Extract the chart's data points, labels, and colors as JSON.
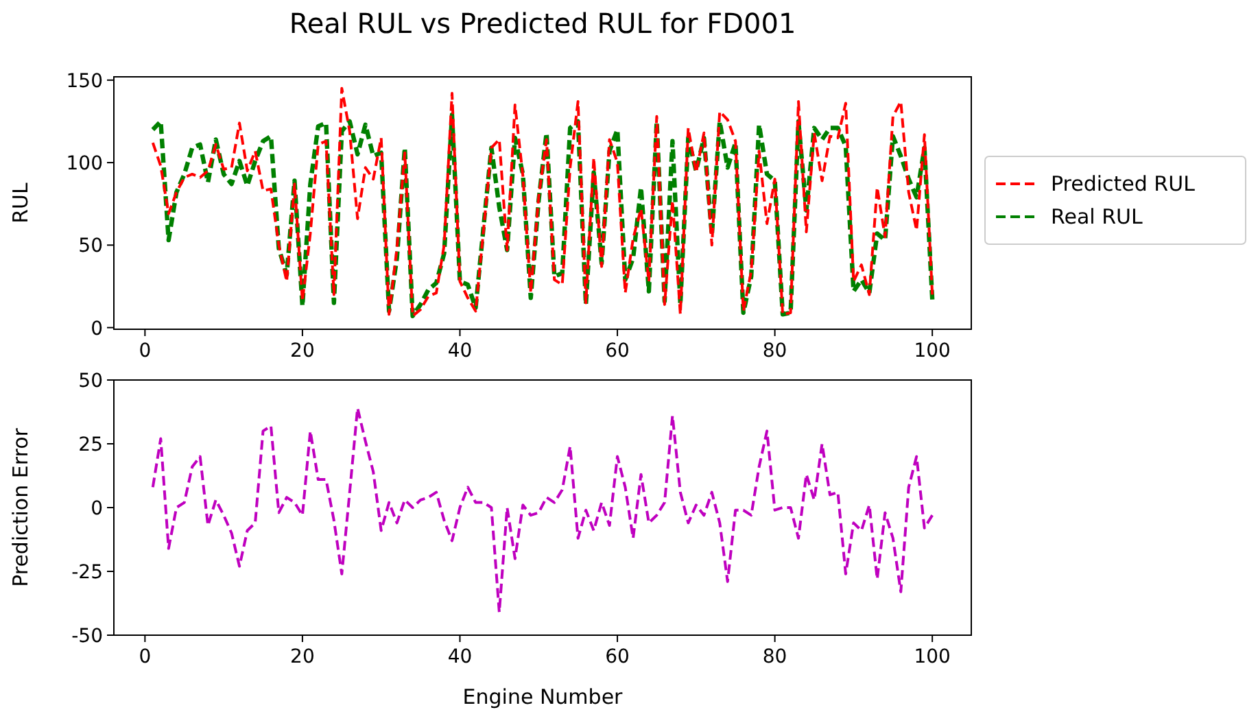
{
  "chart_data": [
    {
      "type": "line",
      "title": "Real RUL vs Predicted RUL for FD001",
      "ylabel": "RUL",
      "line_style": "dashed",
      "legend": "right",
      "marker": "none",
      "x": [
        1,
        2,
        3,
        4,
        5,
        6,
        7,
        8,
        9,
        10,
        11,
        12,
        13,
        14,
        15,
        16,
        17,
        18,
        19,
        20,
        21,
        22,
        23,
        24,
        25,
        26,
        27,
        28,
        29,
        30,
        31,
        32,
        33,
        34,
        35,
        36,
        37,
        38,
        39,
        40,
        41,
        42,
        43,
        44,
        45,
        46,
        47,
        48,
        49,
        50,
        51,
        52,
        53,
        54,
        55,
        56,
        57,
        58,
        59,
        60,
        61,
        62,
        63,
        64,
        65,
        66,
        67,
        68,
        69,
        70,
        71,
        72,
        73,
        74,
        75,
        76,
        77,
        78,
        79,
        80,
        81,
        82,
        83,
        84,
        85,
        86,
        87,
        88,
        89,
        90,
        91,
        92,
        93,
        94,
        95,
        96,
        97,
        98,
        99,
        100
      ],
      "xlim": [
        -3.95,
        104.95
      ],
      "xticks": [
        0,
        20,
        40,
        60,
        80,
        100
      ],
      "ylim": [
        -1,
        152
      ],
      "yticks": [
        0,
        50,
        100,
        150
      ],
      "series": [
        {
          "name": "Predicted RUL",
          "color": "#ff0000",
          "values": [
            112,
            98,
            69,
            82,
            91,
            93,
            91,
            95,
            111,
            96,
            97,
            124,
            95,
            107,
            83,
            84,
            50,
            28,
            87,
            16,
            57,
            111,
            113,
            20,
            145,
            119,
            66,
            97,
            90,
            115,
            8,
            48,
            106,
            7,
            11,
            19,
            21,
            50,
            142,
            28,
            18,
            10,
            59,
            109,
            114,
            47,
            135,
            92,
            21,
            79,
            114,
            29,
            26,
            97,
            137,
            15,
            103,
            37,
            114,
            100,
            21,
            54,
            72,
            28,
            128,
            14,
            77,
            8,
            121,
            94,
            118,
            50,
            131,
            126,
            113,
            10,
            34,
            107,
            63,
            90,
            8,
            9,
            137,
            58,
            118,
            89,
            116,
            115,
            136,
            28,
            38,
            20,
            85,
            55,
            128,
            137,
            82,
            59,
            117,
            20
          ]
        },
        {
          "name": "Real RUL",
          "color": "#008000",
          "values": [
            120,
            125,
            53,
            82,
            93,
            109,
            111,
            88,
            114,
            93,
            87,
            101,
            86,
            101,
            113,
            116,
            48,
            32,
            89,
            13,
            87,
            122,
            124,
            15,
            119,
            125,
            105,
            123,
            104,
            106,
            10,
            42,
            109,
            7,
            14,
            23,
            27,
            45,
            129,
            28,
            26,
            12,
            61,
            109,
            73,
            47,
            115,
            93,
            18,
            77,
            118,
            31,
            33,
            121,
            125,
            14,
            94,
            39,
            107,
            120,
            29,
            42,
            85,
            22,
            125,
            16,
            113,
            14,
            115,
            95,
            115,
            56,
            125,
            97,
            112,
            9,
            31,
            123,
            93,
            89,
            8,
            9,
            125,
            71,
            121,
            114,
            121,
            121,
            110,
            22,
            29,
            21,
            57,
            53,
            116,
            104,
            90,
            79,
            109,
            17
          ]
        }
      ]
    },
    {
      "type": "line",
      "ylabel": "Prediction Error",
      "xlabel": "Engine Number",
      "line_style": "dashed",
      "marker": "none",
      "x": [
        1,
        2,
        3,
        4,
        5,
        6,
        7,
        8,
        9,
        10,
        11,
        12,
        13,
        14,
        15,
        16,
        17,
        18,
        19,
        20,
        21,
        22,
        23,
        24,
        25,
        26,
        27,
        28,
        29,
        30,
        31,
        32,
        33,
        34,
        35,
        36,
        37,
        38,
        39,
        40,
        41,
        42,
        43,
        44,
        45,
        46,
        47,
        48,
        49,
        50,
        51,
        52,
        53,
        54,
        55,
        56,
        57,
        58,
        59,
        60,
        61,
        62,
        63,
        64,
        65,
        66,
        67,
        68,
        69,
        70,
        71,
        72,
        73,
        74,
        75,
        76,
        77,
        78,
        79,
        80,
        81,
        82,
        83,
        84,
        85,
        86,
        87,
        88,
        89,
        90,
        91,
        92,
        93,
        94,
        95,
        96,
        97,
        98,
        99,
        100
      ],
      "xlim": [
        -3.95,
        104.95
      ],
      "xticks": [
        0,
        20,
        40,
        60,
        80,
        100
      ],
      "ylim": [
        -50,
        50
      ],
      "yticks": [
        -50,
        -25,
        0,
        25,
        50
      ],
      "series": [
        {
          "color": "#bf00bf",
          "values": [
            8,
            27,
            -16,
            0,
            2,
            16,
            20,
            -7,
            3,
            -3,
            -10,
            -23,
            -9,
            -6,
            30,
            32,
            -2,
            4,
            2,
            -3,
            30,
            11,
            11,
            -5,
            -26,
            6,
            39,
            26,
            14,
            -9,
            2,
            -6,
            3,
            0,
            3,
            4,
            6,
            -5,
            -13,
            0,
            8,
            2,
            2,
            0,
            -41,
            0,
            -20,
            1,
            -3,
            -2,
            4,
            2,
            7,
            24,
            -12,
            -1,
            -9,
            2,
            -7,
            20,
            8,
            -12,
            13,
            -6,
            -3,
            2,
            36,
            6,
            -6,
            1,
            -3,
            6,
            -6,
            -29,
            -1,
            -1,
            -3,
            16,
            30,
            -1,
            0,
            0,
            -12,
            13,
            3,
            25,
            5,
            6,
            -26,
            -6,
            -9,
            1,
            -28,
            -2,
            -12,
            -33,
            8,
            20,
            -8,
            -3
          ]
        }
      ]
    }
  ]
}
